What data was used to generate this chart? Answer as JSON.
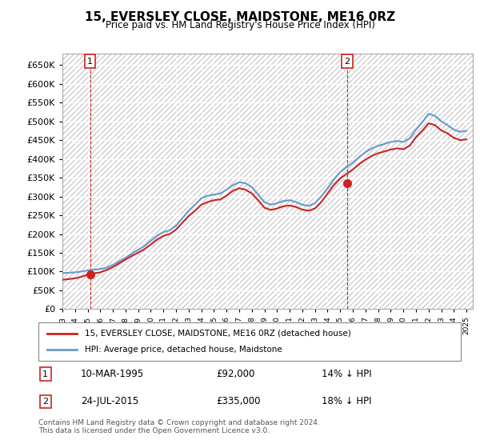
{
  "title": "15, EVERSLEY CLOSE, MAIDSTONE, ME16 0RZ",
  "subtitle": "Price paid vs. HM Land Registry's House Price Index (HPI)",
  "ylabel": "",
  "ylim": [
    0,
    680000
  ],
  "yticks": [
    0,
    50000,
    100000,
    150000,
    200000,
    250000,
    300000,
    350000,
    400000,
    450000,
    500000,
    550000,
    600000,
    650000
  ],
  "ytick_labels": [
    "£0",
    "£50K",
    "£100K",
    "£150K",
    "£200K",
    "£250K",
    "£300K",
    "£350K",
    "£400K",
    "£450K",
    "£500K",
    "£550K",
    "£600K",
    "£650K"
  ],
  "hpi_color": "#6699cc",
  "price_color": "#cc2222",
  "marker_color": "#cc2222",
  "background_color": "#ffffff",
  "grid_color": "#cccccc",
  "sale1_year": 1995.19,
  "sale1_price": 92000,
  "sale1_label": "1",
  "sale2_year": 2015.56,
  "sale2_price": 335000,
  "sale2_label": "2",
  "legend_line1": "15, EVERSLEY CLOSE, MAIDSTONE, ME16 0RZ (detached house)",
  "legend_line2": "HPI: Average price, detached house, Maidstone",
  "table_row1": "1     10-MAR-1995          £92,000          14% ↓ HPI",
  "table_row2": "2     24-JUL-2015          £335,000         18% ↓ HPI",
  "footnote": "Contains HM Land Registry data © Crown copyright and database right 2024.\nThis data is licensed under the Open Government Licence v3.0.",
  "hpi_x": [
    1993,
    1993.5,
    1994,
    1994.5,
    1995,
    1995.5,
    1996,
    1996.5,
    1997,
    1997.5,
    1998,
    1998.5,
    1999,
    1999.5,
    2000,
    2000.5,
    2001,
    2001.5,
    2002,
    2002.5,
    2003,
    2003.5,
    2004,
    2004.5,
    2005,
    2005.5,
    2006,
    2006.5,
    2007,
    2007.5,
    2008,
    2008.5,
    2009,
    2009.5,
    2010,
    2010.5,
    2011,
    2011.5,
    2012,
    2012.5,
    2013,
    2013.5,
    2014,
    2014.5,
    2015,
    2015.5,
    2016,
    2016.5,
    2017,
    2017.5,
    2018,
    2018.5,
    2019,
    2019.5,
    2020,
    2020.5,
    2021,
    2021.5,
    2022,
    2022.5,
    2023,
    2023.5,
    2024,
    2024.5,
    2025
  ],
  "hpi_y": [
    96000,
    97000,
    98000,
    100000,
    103000,
    105000,
    107000,
    110000,
    118000,
    127000,
    137000,
    148000,
    158000,
    168000,
    182000,
    196000,
    205000,
    210000,
    222000,
    242000,
    262000,
    278000,
    295000,
    302000,
    305000,
    308000,
    318000,
    330000,
    338000,
    335000,
    325000,
    305000,
    285000,
    278000,
    282000,
    288000,
    290000,
    285000,
    278000,
    275000,
    282000,
    300000,
    322000,
    345000,
    365000,
    378000,
    390000,
    405000,
    418000,
    428000,
    435000,
    440000,
    445000,
    448000,
    445000,
    455000,
    478000,
    498000,
    520000,
    515000,
    500000,
    490000,
    478000,
    472000,
    475000
  ],
  "price_x": [
    1993,
    1993.5,
    1994,
    1994.5,
    1995,
    1995.5,
    1996,
    1996.5,
    1997,
    1997.5,
    1998,
    1998.5,
    1999,
    1999.5,
    2000,
    2000.5,
    2001,
    2001.5,
    2002,
    2002.5,
    2003,
    2003.5,
    2004,
    2004.5,
    2005,
    2005.5,
    2006,
    2006.5,
    2007,
    2007.5,
    2008,
    2008.5,
    2009,
    2009.5,
    2010,
    2010.5,
    2011,
    2011.5,
    2012,
    2012.5,
    2013,
    2013.5,
    2014,
    2014.5,
    2015,
    2015.5,
    2016,
    2016.5,
    2017,
    2017.5,
    2018,
    2018.5,
    2019,
    2019.5,
    2020,
    2020.5,
    2021,
    2021.5,
    2022,
    2022.5,
    2023,
    2023.5,
    2024,
    2024.5,
    2025
  ],
  "price_y": [
    78000,
    80000,
    82000,
    86000,
    92000,
    95000,
    98000,
    104000,
    112000,
    122000,
    132000,
    142000,
    150000,
    160000,
    172000,
    185000,
    195000,
    200000,
    212000,
    230000,
    248000,
    262000,
    278000,
    285000,
    290000,
    292000,
    302000,
    315000,
    322000,
    318000,
    308000,
    290000,
    270000,
    264000,
    268000,
    274000,
    276000,
    272000,
    265000,
    262000,
    268000,
    285000,
    308000,
    330000,
    348000,
    360000,
    372000,
    386000,
    398000,
    408000,
    415000,
    420000,
    425000,
    428000,
    426000,
    435000,
    458000,
    475000,
    495000,
    490000,
    476000,
    468000,
    456000,
    450000,
    452000
  ]
}
